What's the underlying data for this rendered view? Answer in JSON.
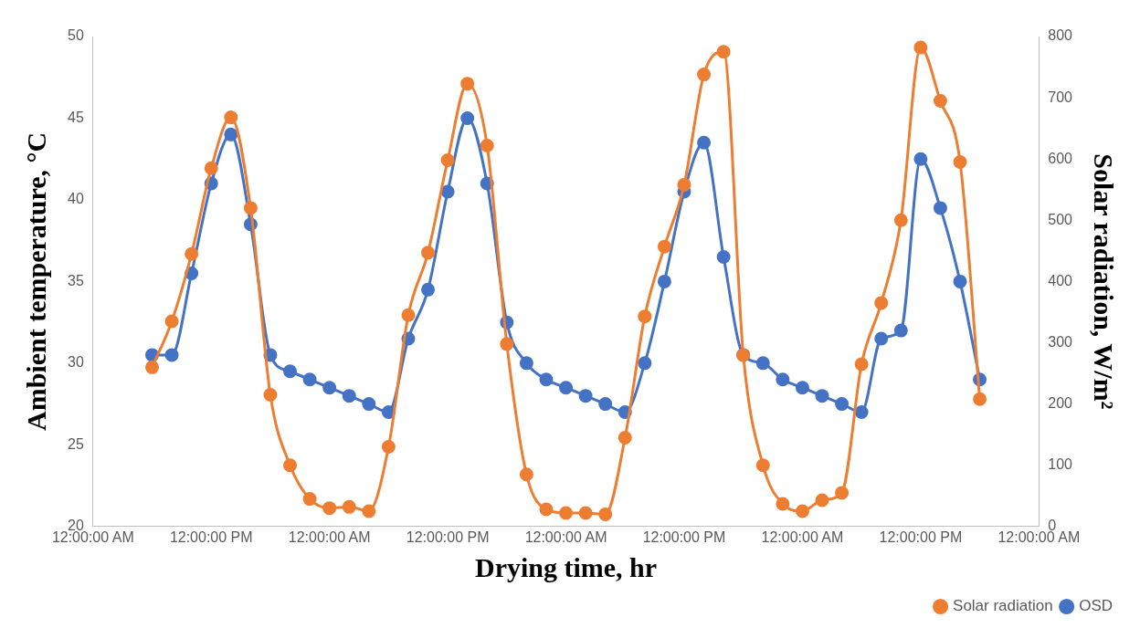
{
  "chart_data": {
    "type": "line",
    "xlabel": "Drying time, hr",
    "ylabel": "Ambient temperature, °C",
    "y2label": "Solar radiation, W/m²",
    "x": [
      "--01-01T06:00",
      "--01-01T08:00",
      "--01-01T10:00",
      "--01-01T12:00",
      "--01-01T14:00",
      "--01-01T16:00",
      "--01-01T18:00",
      "--01-01T20:00",
      "--01-01T22:00",
      "--01-02T00:00",
      "--01-02T02:00",
      "--01-02T04:00",
      "--01-02T06:00",
      "--01-02T08:00",
      "--01-02T10:00",
      "--01-02T12:00",
      "--01-02T14:00",
      "--01-02T16:00",
      "--01-02T18:00",
      "--01-02T20:00",
      "--01-02T22:00",
      "--01-03T00:00",
      "--01-03T02:00",
      "--01-03T04:00",
      "--01-03T06:00",
      "--01-03T08:00",
      "--01-03T10:00",
      "--01-03T12:00",
      "--01-03T14:00",
      "--01-03T16:00",
      "--01-03T18:00",
      "--01-03T20:00",
      "--01-03T22:00",
      "--01-04T00:00",
      "--01-04T02:00",
      "--01-04T04:00",
      "--01-04T06:00",
      "--01-04T08:00",
      "--01-04T10:00",
      "--01-04T12:00",
      "--01-04T14:00",
      "--01-04T16:00",
      "--01-04T18:00"
    ],
    "xlim": [
      "--01-01T00:00",
      "--01-05T00:00"
    ],
    "xticks": [
      {
        "value": "--01-01T00:00",
        "label": "12:00:00 AM"
      },
      {
        "value": "--01-01T12:00",
        "label": "12:00:00 PM"
      },
      {
        "value": "--01-02T00:00",
        "label": "12:00:00 AM"
      },
      {
        "value": "--01-02T12:00",
        "label": "12:00:00 PM"
      },
      {
        "value": "--01-03T00:00",
        "label": "12:00:00 AM"
      },
      {
        "value": "--01-03T12:00",
        "label": "12:00:00 PM"
      },
      {
        "value": "--01-04T00:00",
        "label": "12:00:00 AM"
      },
      {
        "value": "--01-04T12:00",
        "label": "12:00:00 PM"
      },
      {
        "value": "--01-05T00:00",
        "label": "12:00:00 AM"
      }
    ],
    "ylim": [
      20,
      50
    ],
    "yticks": [
      20,
      25,
      30,
      35,
      40,
      45,
      50
    ],
    "y2lim": [
      0,
      800
    ],
    "y2ticks": [
      0,
      100,
      200,
      300,
      400,
      500,
      600,
      700,
      800
    ],
    "series": [
      {
        "name": "OSD",
        "color": "#4472c4",
        "values": [
          30.5,
          30.5,
          35.5,
          41,
          44,
          38.5,
          30.5,
          29.5,
          29,
          28.5,
          28,
          27.5,
          27,
          31.5,
          34.5,
          40.5,
          45,
          41,
          32.5,
          30,
          29,
          28.5,
          28,
          27.5,
          27,
          30,
          35,
          40.5,
          43.5,
          36.5,
          30.5,
          30,
          29,
          28.5,
          28,
          27.5,
          27,
          31.5,
          32,
          42.5,
          39.5,
          35,
          29
        ]
      },
      {
        "name": "Solar radiation",
        "color": "#ed7d31",
        "axis": "y2",
        "values": [
          260,
          335,
          445,
          585,
          668,
          520,
          215,
          100,
          45,
          30,
          32,
          25,
          130,
          345,
          447,
          598,
          723,
          622,
          298,
          85,
          28,
          22,
          22,
          20,
          145,
          343,
          457,
          558,
          738,
          775,
          280,
          100,
          37,
          25,
          43,
          55,
          265,
          365,
          500,
          782,
          695,
          595,
          208
        ]
      }
    ],
    "marker": "circle",
    "grid": false,
    "legend": "bottom right"
  }
}
